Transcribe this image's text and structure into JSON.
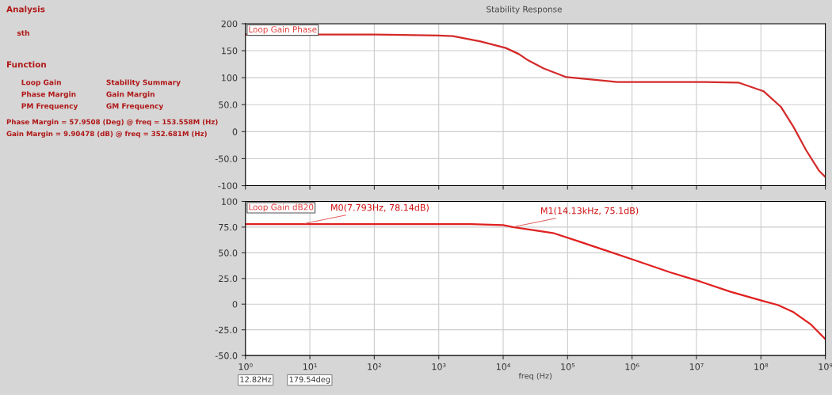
{
  "chart_data": [
    {
      "type": "other",
      "annotations": [
        "Analysis",
        "sth",
        "Function",
        "Loop Gain",
        "Stability Summary",
        "Phase Margin",
        "Gain Margin",
        "PM Frequency",
        "GM Frequency",
        "Phase Margin = 57.9508 (Deg) @ freq = 153.558M (Hz)",
        "Gain Margin = 9.90478 (dB) @ freq = 352.681M (Hz)"
      ]
    },
    {
      "type": "line",
      "title": "Stability Response",
      "log": "x",
      "grid": true,
      "tick_labels": "y",
      "xlim": [
        1,
        1000000000
      ],
      "xticks": [
        1,
        10,
        100,
        1000,
        10000,
        100000,
        1000000,
        10000000,
        100000000,
        1000000000
      ],
      "ylim": [
        -100,
        200
      ],
      "yticks": [
        -100,
        {
          "value": -50,
          "label": "-50.0"
        },
        0,
        {
          "value": 50,
          "label": "50.0"
        },
        100,
        150,
        200
      ],
      "series": [
        {
          "name": "Loop Gain Phase",
          "color": "#d42a2a",
          "x": [
            1,
            10,
            100,
            1000,
            1660,
            4467,
            10965,
            17378,
            24547,
            42658,
            95499,
            588844,
            13490000,
            44670000,
            109600000,
            204200000,
            323600000,
            501200000,
            794300000,
            1000000000
          ],
          "values": [
            180,
            180,
            180,
            178,
            177,
            167,
            155,
            144,
            132,
            117,
            101,
            92,
            92,
            91,
            75,
            46,
            8,
            -34,
            -72,
            -84
          ]
        }
      ]
    },
    {
      "type": "line",
      "log": "x",
      "grid": true,
      "xlabel": "freq (Hz)",
      "xlim": [
        1,
        1000000000
      ],
      "xticks": [
        {
          "value": 1,
          "label": "10⁰"
        },
        {
          "value": 10,
          "label": "10¹"
        },
        {
          "value": 100,
          "label": "10²"
        },
        {
          "value": 1000,
          "label": "10³"
        },
        {
          "value": 10000,
          "label": "10⁴"
        },
        {
          "value": 100000,
          "label": "10⁵"
        },
        {
          "value": 1000000,
          "label": "10⁶"
        },
        {
          "value": 10000000,
          "label": "10⁷"
        },
        {
          "value": 100000000,
          "label": "10⁸"
        },
        {
          "value": 1000000000,
          "label": "10⁹"
        }
      ],
      "ylim": [
        -50,
        100
      ],
      "yticks": [
        {
          "value": -50,
          "label": "-50.0"
        },
        {
          "value": -25,
          "label": "-25.0"
        },
        0,
        {
          "value": 25,
          "label": "25.0"
        },
        {
          "value": 50,
          "label": "50.0"
        },
        {
          "value": 75,
          "label": "75.0"
        },
        100
      ],
      "series": [
        {
          "name": "Loop Gain dB20",
          "color": "#e02020",
          "x": [
            1,
            7.793,
            100,
            1000,
            3162,
            10000,
            14130,
            61660,
            151400,
            1202000,
            3890000,
            11480000,
            33880000,
            109600000,
            186200000,
            323600000,
            602600000,
            1000000000
          ],
          "values": [
            78,
            78,
            78,
            78,
            78,
            77,
            75,
            69,
            61,
            42,
            31,
            22,
            12,
            3,
            -1,
            -8,
            -20,
            -34
          ]
        }
      ],
      "annotations": [
        {
          "text": "M0(7.793Hz, 78.14dB)",
          "x": 7.793,
          "y": 78.14
        },
        {
          "text": "M1(14.13kHz, 75.1dB)",
          "x": 14130,
          "y": 75.1
        },
        "12.82Hz",
        "179.54deg"
      ]
    }
  ]
}
